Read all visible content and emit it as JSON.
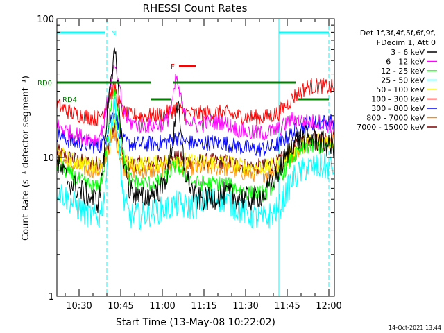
{
  "chart_data": {
    "type": "line",
    "title": "RHESSI Count Rates",
    "xlabel": "Start Time (13-May-08 10:22:02)",
    "ylabel": "Count Rate (s⁻¹ detector segment⁻¹)",
    "yscale": "log",
    "ylim": [
      1,
      100
    ],
    "xlim_minutes_after_1022": [
      0,
      100
    ],
    "x_tick_labels": [
      "10:30",
      "10:45",
      "11:00",
      "11:15",
      "11:30",
      "11:45",
      "12:00"
    ],
    "y_tick_labels": [
      "1",
      "10",
      "100"
    ],
    "legend_header": [
      "Det 1f,3f,4f,5f,6f,9f,",
      "FDecim 1, Att 0"
    ],
    "legend_position": "right",
    "footer_timestamp": "14-Oct-2021 13:44",
    "series": [
      {
        "name": "3 - 6 keV",
        "color": "#000000",
        "x": [
          0,
          5,
          10,
          15,
          17,
          19,
          21,
          22,
          24,
          26,
          30,
          34,
          38,
          40,
          42,
          43,
          44,
          46,
          50,
          55,
          60,
          65,
          70,
          75,
          80,
          85,
          90,
          95,
          98,
          100
        ],
        "y": [
          9,
          6.5,
          5.5,
          4.8,
          10,
          35,
          55,
          30,
          10,
          6,
          5,
          5.5,
          6,
          8,
          14,
          25,
          20,
          8,
          5,
          5,
          5.5,
          5.2,
          5,
          5.5,
          8,
          13,
          14,
          13,
          12,
          12
        ]
      },
      {
        "name": "6 - 12 keV",
        "color": "#ff00ff",
        "x": [
          0,
          5,
          10,
          15,
          17,
          19,
          21,
          22,
          24,
          26,
          30,
          34,
          38,
          40,
          42,
          43,
          44,
          46,
          50,
          55,
          60,
          65,
          70,
          75,
          80,
          85,
          90,
          95,
          98,
          100
        ],
        "y": [
          17,
          15,
          14,
          13.5,
          18,
          32,
          45,
          35,
          22,
          18,
          17,
          17,
          17.5,
          19,
          27,
          38,
          30,
          20,
          17,
          18,
          18,
          16,
          15,
          15,
          16,
          19,
          18,
          18,
          17,
          17
        ]
      },
      {
        "name": "12 - 25 keV",
        "color": "#00ff00",
        "x": [
          0,
          5,
          10,
          15,
          17,
          19,
          21,
          22,
          24,
          26,
          30,
          34,
          38,
          40,
          42,
          43,
          44,
          46,
          50,
          55,
          60,
          65,
          70,
          75,
          80,
          85,
          90,
          95,
          98,
          100
        ],
        "y": [
          9,
          7.5,
          6.5,
          6,
          8,
          20,
          32,
          22,
          10,
          7,
          6.5,
          6.5,
          6.8,
          7.5,
          8.5,
          9,
          8.5,
          7.5,
          6.5,
          6.5,
          6.5,
          6,
          5.5,
          5.5,
          7,
          10,
          12,
          12,
          12,
          12
        ]
      },
      {
        "name": "25 - 50 keV",
        "color": "#00ffff",
        "x": [
          0,
          5,
          10,
          15,
          17,
          19,
          21,
          22,
          24,
          26,
          30,
          34,
          38,
          40,
          42,
          43,
          44,
          46,
          50,
          55,
          60,
          65,
          70,
          75,
          80,
          85,
          90,
          95,
          98,
          100
        ],
        "y": [
          6,
          4.8,
          4,
          3.6,
          5,
          15,
          25,
          14,
          5,
          3.8,
          3.8,
          4,
          4.2,
          4.3,
          4.5,
          4.6,
          4.6,
          4.4,
          4.5,
          5,
          5,
          4.3,
          3.8,
          3.6,
          4.3,
          7,
          8.5,
          8.5,
          8.5,
          8.5
        ]
      },
      {
        "name": "50 - 100 keV",
        "color": "#ffff00",
        "x": [
          0,
          5,
          10,
          15,
          17,
          19,
          21,
          22,
          24,
          26,
          30,
          34,
          38,
          40,
          42,
          43,
          44,
          46,
          50,
          55,
          60,
          65,
          70,
          75,
          80,
          85,
          90,
          95,
          98,
          100
        ],
        "y": [
          11,
          9.5,
          9,
          8.8,
          9.5,
          14,
          18,
          13,
          9.5,
          9,
          9,
          9,
          9.2,
          9.5,
          9.8,
          10,
          9.8,
          9.5,
          9.2,
          9.3,
          9.3,
          8.8,
          8.5,
          8.5,
          9,
          11,
          13,
          13.5,
          13,
          13
        ]
      },
      {
        "name": "100 - 300 keV",
        "color": "#ff0000",
        "x": [
          0,
          5,
          10,
          15,
          17,
          19,
          21,
          22,
          24,
          26,
          30,
          34,
          38,
          40,
          42,
          43,
          44,
          46,
          50,
          55,
          60,
          65,
          70,
          75,
          80,
          85,
          90,
          95,
          98,
          100
        ],
        "y": [
          24,
          21,
          20,
          19,
          22,
          28,
          32,
          26,
          21,
          20,
          20,
          20,
          20.5,
          21,
          22,
          23,
          22,
          21,
          20.5,
          21,
          21,
          20,
          19.5,
          19.5,
          21,
          27,
          32,
          33,
          32,
          32
        ]
      },
      {
        "name": "300 - 800 keV",
        "color": "#0000ff",
        "x": [
          0,
          5,
          10,
          15,
          17,
          19,
          21,
          22,
          24,
          26,
          30,
          34,
          38,
          40,
          42,
          43,
          44,
          46,
          50,
          55,
          60,
          65,
          70,
          75,
          80,
          85,
          90,
          95,
          98,
          100
        ],
        "y": [
          15,
          13,
          12.5,
          12,
          13,
          18,
          22,
          17,
          13,
          12.5,
          12.5,
          12.5,
          12.8,
          13,
          13.5,
          14,
          13.5,
          13,
          12.5,
          12.8,
          12.8,
          12,
          11.5,
          11.5,
          12.5,
          15,
          17.5,
          18,
          18,
          18
        ]
      },
      {
        "name": "800 - 7000 keV",
        "color": "#ff8c00",
        "x": [
          0,
          5,
          10,
          15,
          17,
          19,
          21,
          22,
          24,
          26,
          30,
          34,
          38,
          40,
          42,
          43,
          44,
          46,
          50,
          55,
          60,
          65,
          70,
          75,
          80,
          85,
          90,
          95,
          98,
          100
        ],
        "y": [
          10,
          8.8,
          8.3,
          8,
          8.8,
          12,
          15,
          11.5,
          8.5,
          8,
          8,
          8,
          8.2,
          8.4,
          8.7,
          9,
          8.8,
          8.5,
          8.3,
          8.4,
          8.4,
          7.9,
          7.6,
          7.6,
          8.3,
          10.5,
          12.5,
          13,
          13,
          13
        ]
      },
      {
        "name": "7000 - 15000 keV",
        "color": "#800000",
        "x": [
          0,
          5,
          10,
          15,
          17,
          19,
          21,
          22,
          24,
          26,
          30,
          34,
          38,
          40,
          42,
          43,
          44,
          46,
          50,
          55,
          60,
          65,
          70,
          75,
          80,
          85,
          90,
          95,
          98,
          100
        ],
        "y": [
          11,
          9.8,
          9.2,
          9,
          9.6,
          13,
          16,
          12.5,
          9.5,
          9,
          9,
          9,
          9.2,
          9.4,
          9.7,
          10,
          9.8,
          9.5,
          9.3,
          9.4,
          9.4,
          8.9,
          8.6,
          8.6,
          9.3,
          11.5,
          13.5,
          14,
          14,
          14
        ]
      }
    ],
    "vertical_lines": [
      {
        "x": 0,
        "style": "solid",
        "color": "#00ffff"
      },
      {
        "x": 18,
        "style": "dashed",
        "color": "#00ffff"
      },
      {
        "x": 80,
        "style": "solid",
        "color": "#00ffff"
      },
      {
        "x": 98,
        "style": "dashed",
        "color": "#00ffff"
      }
    ],
    "flag_bars": [
      {
        "label": "N",
        "color": "#00ffff",
        "label_x": 19.5,
        "level": 95,
        "segments": [
          [
            0,
            17.5
          ],
          [
            80,
            98
          ]
        ]
      },
      {
        "label": "F",
        "color": "#ff0000",
        "label_x": 41,
        "level": 83,
        "segments": [
          [
            44,
            50
          ]
        ]
      },
      {
        "label": "RD0",
        "color": "#007f00",
        "label_x": -1,
        "level": 77,
        "segments": [
          [
            0,
            34
          ],
          [
            42,
            86
          ]
        ]
      },
      {
        "label": "RD4",
        "color": "#007f00",
        "label_x": 2,
        "level": 71,
        "segments": [
          [
            34,
            41
          ],
          [
            87,
            98
          ]
        ]
      }
    ]
  }
}
